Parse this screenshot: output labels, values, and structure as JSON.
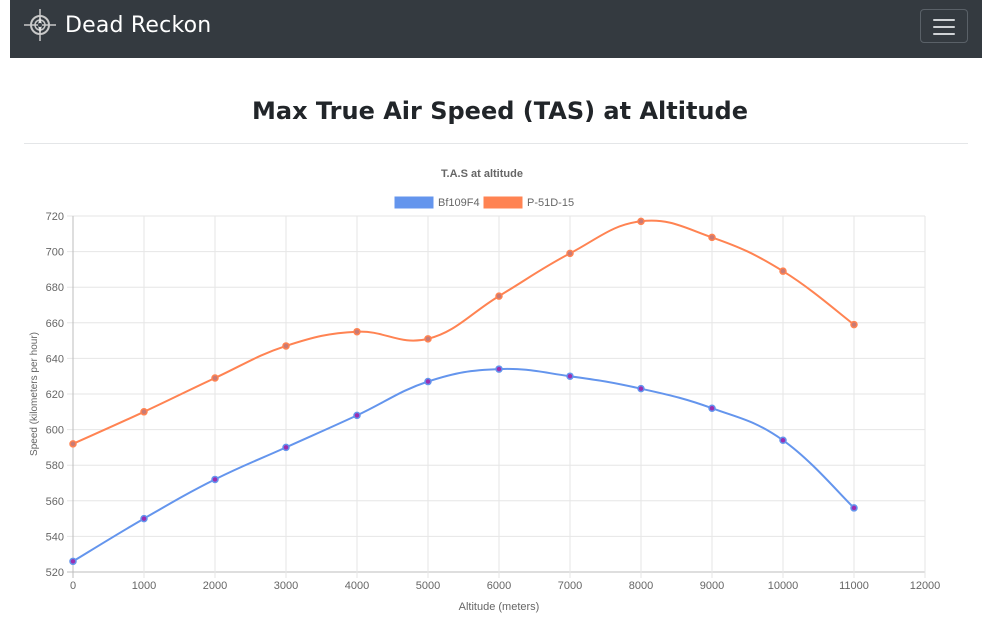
{
  "navbar": {
    "brand": "Dead Reckon",
    "logo_icon": "compass-rose-icon",
    "menu_icon": "hamburger-menu-icon",
    "background": "#343a40"
  },
  "page": {
    "title": "Max True Air Speed (TAS) at Altitude"
  },
  "chart_data": {
    "type": "line",
    "title": "T.A.S at altitude",
    "xlabel": "Altitude (meters)",
    "ylabel": "Speed (kilometers per hour)",
    "x": [
      0,
      1000,
      2000,
      3000,
      4000,
      5000,
      6000,
      7000,
      8000,
      9000,
      10000,
      11000
    ],
    "xlim": [
      0,
      12000
    ],
    "ylim": [
      520,
      720
    ],
    "xticks": [
      0,
      1000,
      2000,
      3000,
      4000,
      5000,
      6000,
      7000,
      8000,
      9000,
      10000,
      11000,
      12000
    ],
    "yticks": [
      520,
      540,
      560,
      580,
      600,
      620,
      640,
      660,
      680,
      700,
      720
    ],
    "grid": true,
    "legend_position": "top",
    "series": [
      {
        "name": "Bf109F4",
        "color": "#6495ed",
        "point_color": "#9b2fb0",
        "values": [
          526,
          550,
          572,
          590,
          608,
          627,
          634,
          630,
          623,
          612,
          594,
          556
        ]
      },
      {
        "name": "P-51D-15",
        "color": "#ff8352",
        "point_color": "#c97a74",
        "values": [
          592,
          610,
          629,
          647,
          655,
          651,
          675,
          699,
          717,
          708,
          689,
          659
        ]
      }
    ]
  }
}
